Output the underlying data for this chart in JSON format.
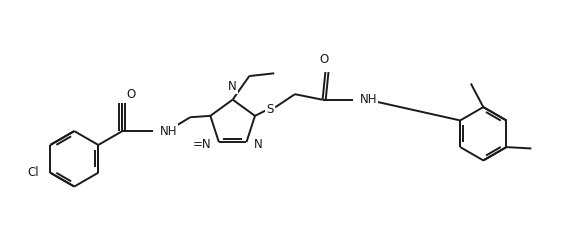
{
  "bg_color": "#ffffff",
  "line_color": "#1a1a1a",
  "line_width": 1.4,
  "font_size": 8.5,
  "figsize": [
    5.88,
    2.27
  ],
  "dpi": 100,
  "xlim": [
    0,
    11.0
  ],
  "ylim": [
    0,
    4.2
  ]
}
